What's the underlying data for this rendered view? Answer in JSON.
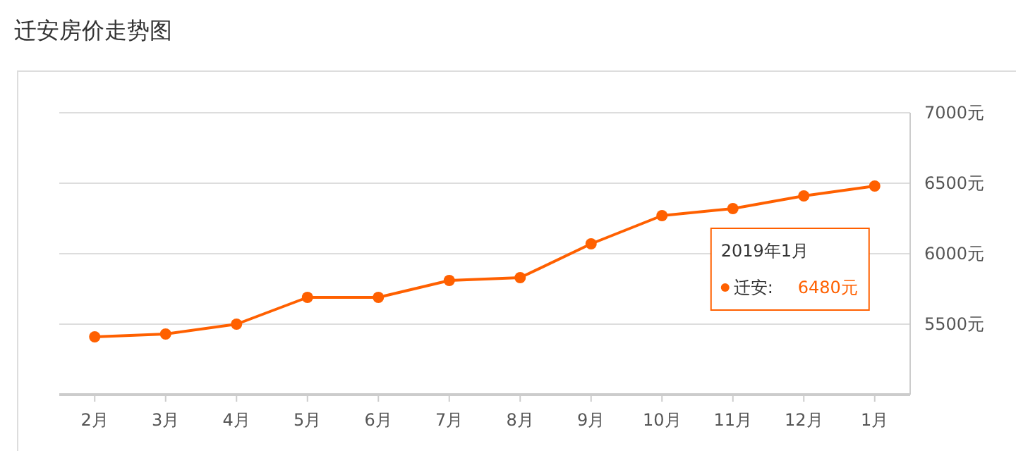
{
  "chart_data": {
    "type": "line",
    "title": "迁安房价走势图",
    "categories": [
      "2月",
      "3月",
      "4月",
      "5月",
      "6月",
      "7月",
      "8月",
      "9月",
      "10月",
      "11月",
      "12月",
      "1月"
    ],
    "series": [
      {
        "color": "#ff6000",
        "values": [
          5410,
          5430,
          5500,
          5690,
          5690,
          5810,
          5830,
          6070,
          6270,
          6320,
          6410,
          6480
        ]
      }
    ],
    "annotations": [
      "2019年1月",
      "迁安:",
      "6480元"
    ],
    "ylim": [
      5000,
      7000
    ],
    "yticks": [
      {
        "value": 5500,
        "label": "5500元"
      },
      {
        "value": 6000,
        "label": "6000元"
      },
      {
        "value": 6500,
        "label": "6500元"
      },
      {
        "value": 7000,
        "label": "7000元"
      }
    ],
    "grid": "y",
    "marker": "circle",
    "line_style": "solid"
  }
}
